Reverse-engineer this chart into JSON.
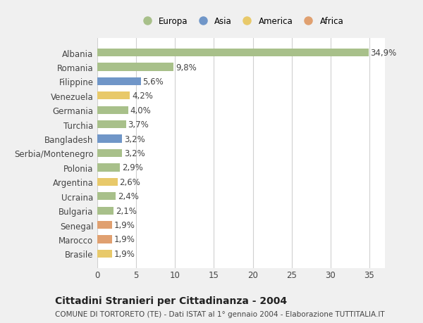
{
  "categories": [
    "Albania",
    "Romania",
    "Filippine",
    "Venezuela",
    "Germania",
    "Turchia",
    "Bangladesh",
    "Serbia/Montenegro",
    "Polonia",
    "Argentina",
    "Ucraina",
    "Bulgaria",
    "Senegal",
    "Marocco",
    "Brasile"
  ],
  "values": [
    34.9,
    9.8,
    5.6,
    4.2,
    4.0,
    3.7,
    3.2,
    3.2,
    2.9,
    2.6,
    2.4,
    2.1,
    1.9,
    1.9,
    1.9
  ],
  "continents": [
    "Europa",
    "Europa",
    "Asia",
    "America",
    "Europa",
    "Europa",
    "Asia",
    "Europa",
    "Europa",
    "America",
    "Europa",
    "Europa",
    "Africa",
    "Africa",
    "America"
  ],
  "continent_colors": {
    "Europa": "#a8c08a",
    "Asia": "#7096c8",
    "America": "#e8c96a",
    "Africa": "#e0a070"
  },
  "legend_order": [
    "Europa",
    "Asia",
    "America",
    "Africa"
  ],
  "title": "Cittadini Stranieri per Cittadinanza - 2004",
  "subtitle": "COMUNE DI TORTORETO (TE) - Dati ISTAT al 1° gennaio 2004 - Elaborazione TUTTITALIA.IT",
  "xlim": [
    0,
    37
  ],
  "xticks": [
    0,
    5,
    10,
    15,
    20,
    25,
    30,
    35
  ],
  "bg_color": "#f0f0f0",
  "plot_bg_color": "#ffffff",
  "grid_color": "#d0d0d0",
  "text_color": "#444444",
  "bar_label_fontsize": 8.5,
  "ytick_fontsize": 8.5,
  "xtick_fontsize": 8.5,
  "title_fontsize": 10,
  "subtitle_fontsize": 7.5,
  "legend_fontsize": 8.5,
  "bar_height": 0.55
}
